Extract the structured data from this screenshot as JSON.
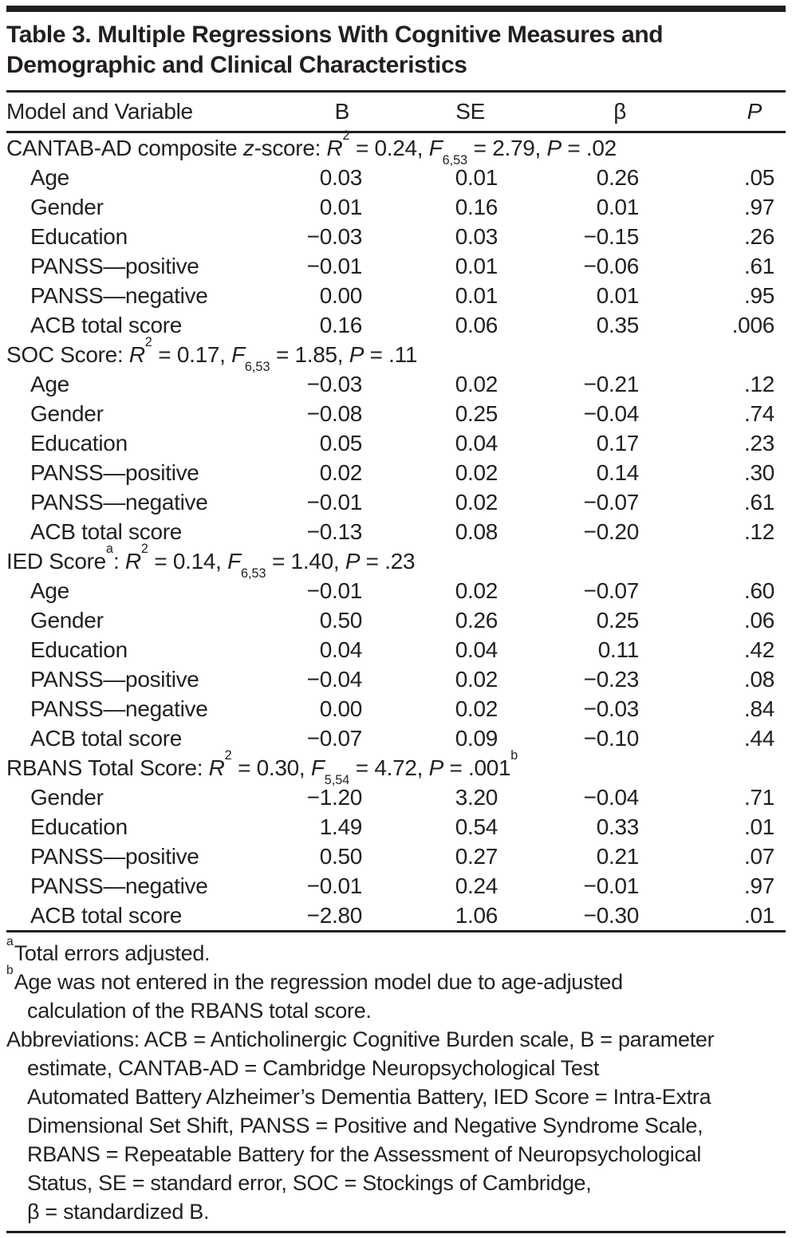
{
  "colors": {
    "text": "#231f20",
    "rule": "#231f20",
    "background": "#ffffff"
  },
  "table": {
    "title": "Table 3. Multiple Regressions With Cognitive Measures and Demographic and Clinical Characteristics",
    "columns": [
      {
        "label": "Model and Variable"
      },
      {
        "label": "B"
      },
      {
        "label": "SE"
      },
      {
        "label": "β"
      },
      {
        "label": "P"
      }
    ],
    "sections": [
      {
        "header_segments": [
          {
            "t": "CANTAB-AD composite ",
            "s": "n"
          },
          {
            "t": "z",
            "s": "i"
          },
          {
            "t": "-score: ",
            "s": "n"
          },
          {
            "t": "R",
            "s": "i"
          },
          {
            "t": "2",
            "s": "sup"
          },
          {
            "t": " = 0.24, ",
            "s": "n"
          },
          {
            "t": "F",
            "s": "i"
          },
          {
            "t": "6,53",
            "s": "sub"
          },
          {
            "t": " = 2.79, ",
            "s": "n"
          },
          {
            "t": "P",
            "s": "i"
          },
          {
            "t": " = .02",
            "s": "n"
          }
        ],
        "rows": [
          {
            "label": "Age",
            "b": "0.03",
            "se": "0.01",
            "beta": "0.26",
            "p": ".05"
          },
          {
            "label": "Gender",
            "b": "0.01",
            "se": "0.16",
            "beta": "0.01",
            "p": ".97"
          },
          {
            "label": "Education",
            "b": "−0.03",
            "se": "0.03",
            "beta": "−0.15",
            "p": ".26"
          },
          {
            "label": "PANSS—positive",
            "b": "−0.01",
            "se": "0.01",
            "beta": "−0.06",
            "p": ".61"
          },
          {
            "label": "PANSS—negative",
            "b": "0.00",
            "se": "0.01",
            "beta": "0.01",
            "p": ".95"
          },
          {
            "label": "ACB total score",
            "b": "0.16",
            "se": "0.06",
            "beta": "0.35",
            "p": ".006"
          }
        ]
      },
      {
        "header_segments": [
          {
            "t": "SOC Score: ",
            "s": "n"
          },
          {
            "t": "R",
            "s": "i"
          },
          {
            "t": "2",
            "s": "sup"
          },
          {
            "t": " = 0.17, ",
            "s": "n"
          },
          {
            "t": "F",
            "s": "i"
          },
          {
            "t": "6,53",
            "s": "sub"
          },
          {
            "t": " = 1.85, ",
            "s": "n"
          },
          {
            "t": "P",
            "s": "i"
          },
          {
            "t": " = .11",
            "s": "n"
          }
        ],
        "rows": [
          {
            "label": "Age",
            "b": "−0.03",
            "se": "0.02",
            "beta": "−0.21",
            "p": ".12"
          },
          {
            "label": "Gender",
            "b": "−0.08",
            "se": "0.25",
            "beta": "−0.04",
            "p": ".74"
          },
          {
            "label": "Education",
            "b": "0.05",
            "se": "0.04",
            "beta": "0.17",
            "p": ".23"
          },
          {
            "label": "PANSS—positive",
            "b": "0.02",
            "se": "0.02",
            "beta": "0.14",
            "p": ".30"
          },
          {
            "label": "PANSS—negative",
            "b": "−0.01",
            "se": "0.02",
            "beta": "−0.07",
            "p": ".61"
          },
          {
            "label": "ACB total score",
            "b": "−0.13",
            "se": "0.08",
            "beta": "−0.20",
            "p": ".12"
          }
        ]
      },
      {
        "header_segments": [
          {
            "t": "IED Score",
            "s": "n"
          },
          {
            "t": "a",
            "s": "sup"
          },
          {
            "t": ": ",
            "s": "n"
          },
          {
            "t": "R",
            "s": "i"
          },
          {
            "t": "2",
            "s": "sup"
          },
          {
            "t": " = 0.14, ",
            "s": "n"
          },
          {
            "t": "F",
            "s": "i"
          },
          {
            "t": "6,53",
            "s": "sub"
          },
          {
            "t": " = 1.40, ",
            "s": "n"
          },
          {
            "t": "P",
            "s": "i"
          },
          {
            "t": " = .23",
            "s": "n"
          }
        ],
        "rows": [
          {
            "label": "Age",
            "b": "−0.01",
            "se": "0.02",
            "beta": "−0.07",
            "p": ".60"
          },
          {
            "label": "Gender",
            "b": "0.50",
            "se": "0.26",
            "beta": "0.25",
            "p": ".06"
          },
          {
            "label": "Education",
            "b": "0.04",
            "se": "0.04",
            "beta": "0.11",
            "p": ".42"
          },
          {
            "label": "PANSS—positive",
            "b": "−0.04",
            "se": "0.02",
            "beta": "−0.23",
            "p": ".08"
          },
          {
            "label": "PANSS—negative",
            "b": "0.00",
            "se": "0.02",
            "beta": "−0.03",
            "p": ".84"
          },
          {
            "label": "ACB total score",
            "b": "−0.07",
            "se": "0.09",
            "beta": "−0.10",
            "p": ".44"
          }
        ]
      },
      {
        "header_segments": [
          {
            "t": "RBANS Total Score: ",
            "s": "n"
          },
          {
            "t": "R",
            "s": "i"
          },
          {
            "t": "2",
            "s": "sup"
          },
          {
            "t": " = 0.30, ",
            "s": "n"
          },
          {
            "t": "F",
            "s": "i"
          },
          {
            "t": "5,54",
            "s": "sub"
          },
          {
            "t": " = 4.72, ",
            "s": "n"
          },
          {
            "t": "P",
            "s": "i"
          },
          {
            "t": " = .001",
            "s": "n"
          },
          {
            "t": "b",
            "s": "sup"
          }
        ],
        "rows": [
          {
            "label": "Gender",
            "b": "−1.20",
            "se": "3.20",
            "beta": "−0.04",
            "p": ".71"
          },
          {
            "label": "Education",
            "b": "1.49",
            "se": "0.54",
            "beta": "0.33",
            "p": ".01"
          },
          {
            "label": "PANSS—positive",
            "b": "0.50",
            "se": "0.27",
            "beta": "0.21",
            "p": ".07"
          },
          {
            "label": "PANSS—negative",
            "b": "−0.01",
            "se": "0.24",
            "beta": "−0.01",
            "p": ".97"
          },
          {
            "label": "ACB total score",
            "b": "−2.80",
            "se": "1.06",
            "beta": "−0.30",
            "p": ".01"
          }
        ]
      }
    ]
  },
  "footnotes": [
    {
      "marker": "a",
      "lines": [
        "Total errors adjusted."
      ]
    },
    {
      "marker": "b",
      "lines": [
        "Age was not entered in the regression model due to age-adjusted",
        "calculation of the RBANS total score."
      ]
    },
    {
      "marker": "",
      "lines": [
        "Abbreviations: ACB = Anticholinergic Cognitive Burden scale, B = parameter",
        "estimate, CANTAB-AD =  Cambridge Neuropsychological Test",
        "Automated Battery Alzheimer’s Dementia Battery, IED Score = Intra-Extra",
        "Dimensional Set Shift, PANSS = Positive and Negative Syndrome Scale,",
        "RBANS = Repeatable Battery for the Assessment of Neuropsychological",
        "Status, SE = standard error, SOC = Stockings of Cambridge,",
        "β = standardized B."
      ]
    }
  ]
}
